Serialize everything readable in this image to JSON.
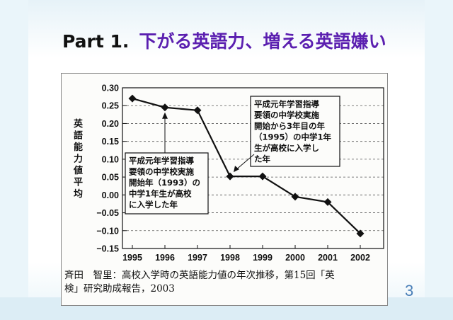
{
  "slide": {
    "title_part": "Part 1.",
    "title_text": "下がる英語力、増える英語嫌い",
    "page_number": "3"
  },
  "caption": {
    "line1": "斉田　智里：高校入学時の英語能力値の年次推移，第15回「英",
    "line2": "検」研究助成報告，2003"
  },
  "chart_data": {
    "type": "line",
    "ylabel": "英語能力値平均",
    "x": [
      "1995",
      "1996",
      "1997",
      "1998",
      "1999",
      "2000",
      "2001",
      "2002"
    ],
    "values": [
      0.27,
      0.245,
      0.237,
      0.052,
      0.052,
      -0.005,
      -0.02,
      -0.108
    ],
    "yticks": [
      "0.30",
      "0.25",
      "0.20",
      "0.15",
      "0.10",
      "0.05",
      "0.00",
      "−0.05",
      "−0.10",
      "−0.15"
    ],
    "ylim": [
      -0.15,
      0.3
    ],
    "grid": "horizontal-dashed",
    "annotations": [
      {
        "lines": [
          "平成元年学習指導",
          "要領の中学校実施",
          "開始年（1993）の",
          "中学1年生が高校",
          "に入学した年"
        ],
        "points_to": "1996"
      },
      {
        "lines": [
          "平成元年学習指導",
          "要領の中学校実施",
          "開始から3年目の年",
          "（1995）の中学1年",
          "生が高校に入学し",
          "た年"
        ],
        "points_to": "1998"
      }
    ]
  }
}
